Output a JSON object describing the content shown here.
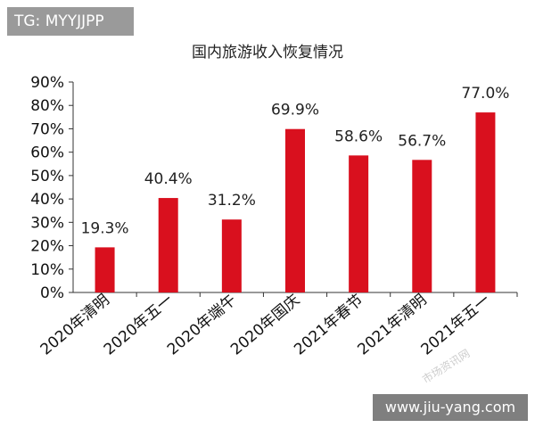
{
  "tag": "TG: MYYJJPP",
  "website": "www.jiu-yang.com",
  "watermark": "市场资讯网",
  "chart_data": {
    "type": "bar",
    "title": "国内旅游收入恢复情况",
    "xlabel": "",
    "ylabel": "",
    "categories": [
      "2020年清明",
      "2020年五一",
      "2020年端午",
      "2020年国庆",
      "2021年春节",
      "2021年清明",
      "2021年五一"
    ],
    "values": [
      19.3,
      40.4,
      31.2,
      69.9,
      58.6,
      56.7,
      77.0
    ],
    "value_labels": [
      "19.3%",
      "40.4%",
      "31.2%",
      "69.9%",
      "58.6%",
      "56.7%",
      "77.0%"
    ],
    "ylim": [
      0,
      90
    ],
    "yticks": [
      "0%",
      "10%",
      "20%",
      "30%",
      "40%",
      "50%",
      "60%",
      "70%",
      "80%",
      "90%"
    ],
    "grid": false,
    "bar_color": "#d9101e"
  }
}
